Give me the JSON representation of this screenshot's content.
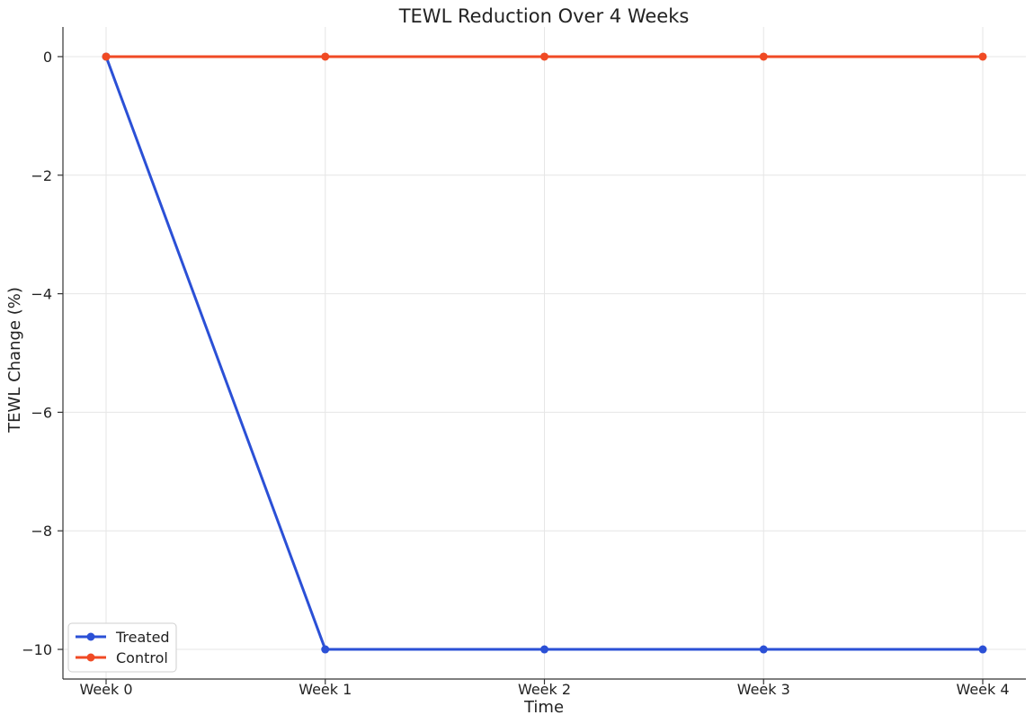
{
  "chart_data": {
    "type": "line",
    "title": "TEWL Reduction Over 4 Weeks",
    "xlabel": "Time",
    "ylabel": "TEWL Change (%)",
    "categories": [
      "Week 0",
      "Week 1",
      "Week 2",
      "Week 3",
      "Week 4"
    ],
    "ylim": [
      -10.5,
      0.5
    ],
    "yticks": [
      0,
      -2,
      -4,
      -6,
      -8,
      -10
    ],
    "ytick_labels": [
      "0",
      "−2",
      "−4",
      "−6",
      "−8",
      "−10"
    ],
    "grid": true,
    "legend_position": "bottom-left",
    "series": [
      {
        "name": "Treated",
        "color": "#2b50d6",
        "values": [
          0,
          -10,
          -10,
          -10,
          -10
        ]
      },
      {
        "name": "Control",
        "color": "#f04a24",
        "values": [
          0,
          0,
          0,
          0,
          0
        ]
      }
    ]
  }
}
